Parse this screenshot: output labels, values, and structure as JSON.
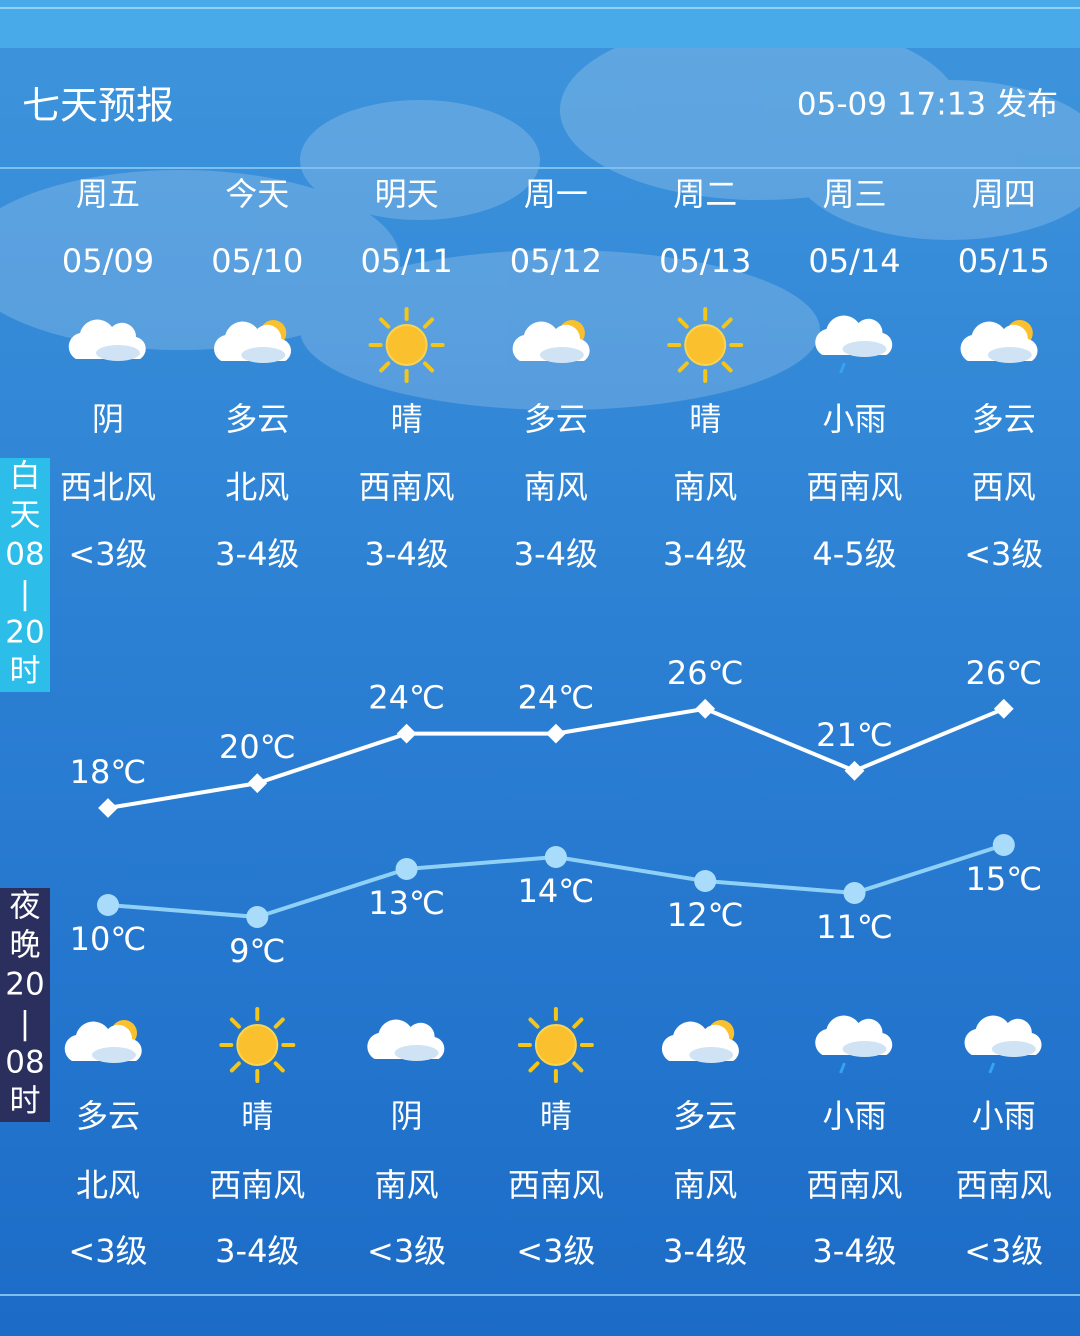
{
  "header": {
    "title": "七天预报",
    "published": "05-09 17:13 发布"
  },
  "day_label": [
    "白",
    "天",
    "08",
    "|",
    "20",
    "时"
  ],
  "night_label": [
    "夜",
    "晚",
    "20",
    "|",
    "08",
    "时"
  ],
  "days": [
    {
      "weekday": "周五",
      "date": "05/09",
      "day": {
        "weather": "阴",
        "wind": "西北风",
        "level": "<3级"
      },
      "high": 18,
      "high_label": "18℃",
      "low": 10,
      "low_label": "10℃",
      "night": {
        "weather": "多云",
        "wind": "北风",
        "level": "<3级"
      }
    },
    {
      "weekday": "今天",
      "date": "05/10",
      "day": {
        "weather": "多云",
        "wind": "北风",
        "level": "3-4级"
      },
      "high": 20,
      "high_label": "20℃",
      "low": 9,
      "low_label": "9℃",
      "night": {
        "weather": "晴",
        "wind": "西南风",
        "level": "3-4级"
      }
    },
    {
      "weekday": "明天",
      "date": "05/11",
      "day": {
        "weather": "晴",
        "wind": "西南风",
        "level": "3-4级"
      },
      "high": 24,
      "high_label": "24℃",
      "low": 13,
      "low_label": "13℃",
      "night": {
        "weather": "阴",
        "wind": "南风",
        "level": "<3级"
      }
    },
    {
      "weekday": "周一",
      "date": "05/12",
      "day": {
        "weather": "多云",
        "wind": "南风",
        "level": "3-4级"
      },
      "high": 24,
      "high_label": "24℃",
      "low": 14,
      "low_label": "14℃",
      "night": {
        "weather": "晴",
        "wind": "西南风",
        "level": "<3级"
      }
    },
    {
      "weekday": "周二",
      "date": "05/13",
      "day": {
        "weather": "晴",
        "wind": "南风",
        "level": "3-4级"
      },
      "high": 26,
      "high_label": "26℃",
      "low": 12,
      "low_label": "12℃",
      "night": {
        "weather": "多云",
        "wind": "南风",
        "level": "3-4级"
      }
    },
    {
      "weekday": "周三",
      "date": "05/14",
      "day": {
        "weather": "小雨",
        "wind": "西南风",
        "level": "4-5级"
      },
      "high": 21,
      "high_label": "21℃",
      "low": 11,
      "low_label": "11℃",
      "night": {
        "weather": "小雨",
        "wind": "西南风",
        "level": "3-4级"
      }
    },
    {
      "weekday": "周四",
      "date": "05/15",
      "day": {
        "weather": "多云",
        "wind": "西风",
        "level": "<3级"
      },
      "high": 26,
      "high_label": "26℃",
      "low": 15,
      "low_label": "15℃",
      "night": {
        "weather": "小雨",
        "wind": "西南风",
        "level": "<3级"
      }
    }
  ]
}
